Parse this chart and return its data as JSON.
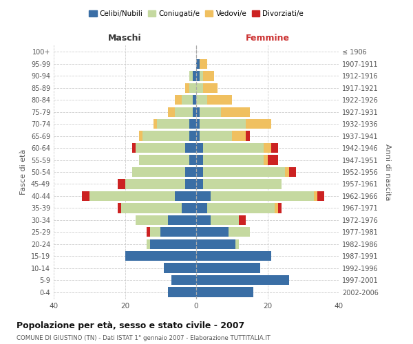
{
  "age_groups": [
    "0-4",
    "5-9",
    "10-14",
    "15-19",
    "20-24",
    "25-29",
    "30-34",
    "35-39",
    "40-44",
    "45-49",
    "50-54",
    "55-59",
    "60-64",
    "65-69",
    "70-74",
    "75-79",
    "80-84",
    "85-89",
    "90-94",
    "95-99",
    "100+"
  ],
  "birth_years": [
    "2002-2006",
    "1997-2001",
    "1992-1996",
    "1987-1991",
    "1982-1986",
    "1977-1981",
    "1972-1976",
    "1967-1971",
    "1962-1966",
    "1957-1961",
    "1952-1956",
    "1947-1951",
    "1942-1946",
    "1937-1941",
    "1932-1936",
    "1927-1931",
    "1922-1926",
    "1917-1921",
    "1912-1916",
    "1907-1911",
    "≤ 1906"
  ],
  "male_celibi": [
    8,
    7,
    9,
    20,
    13,
    10,
    8,
    4,
    6,
    3,
    3,
    2,
    3,
    2,
    2,
    1,
    1,
    0,
    1,
    0,
    0
  ],
  "male_coniugati": [
    0,
    0,
    0,
    0,
    1,
    3,
    9,
    17,
    24,
    17,
    15,
    14,
    14,
    13,
    9,
    5,
    3,
    2,
    1,
    0,
    0
  ],
  "male_vedovi": [
    0,
    0,
    0,
    0,
    0,
    0,
    0,
    0,
    0,
    0,
    0,
    0,
    0,
    1,
    1,
    2,
    2,
    1,
    0,
    0,
    0
  ],
  "male_divorziati": [
    0,
    0,
    0,
    0,
    0,
    1,
    0,
    1,
    2,
    2,
    0,
    0,
    1,
    0,
    0,
    0,
    0,
    0,
    0,
    0,
    0
  ],
  "female_celibi": [
    16,
    26,
    18,
    21,
    11,
    9,
    4,
    3,
    4,
    2,
    2,
    2,
    2,
    1,
    1,
    1,
    0,
    0,
    1,
    1,
    0
  ],
  "female_coniugati": [
    0,
    0,
    0,
    0,
    1,
    6,
    8,
    19,
    29,
    22,
    23,
    17,
    17,
    9,
    13,
    6,
    3,
    2,
    1,
    0,
    0
  ],
  "female_vedovi": [
    0,
    0,
    0,
    0,
    0,
    0,
    0,
    1,
    1,
    0,
    1,
    1,
    2,
    4,
    7,
    8,
    7,
    4,
    3,
    2,
    0
  ],
  "female_divorziati": [
    0,
    0,
    0,
    0,
    0,
    0,
    2,
    1,
    2,
    0,
    2,
    3,
    2,
    1,
    0,
    0,
    0,
    0,
    0,
    0,
    0
  ],
  "color_celibi": "#3a6ea5",
  "color_coniugati": "#c5d9a0",
  "color_vedovi": "#f0c060",
  "color_divorziati": "#cc2222",
  "title": "Popolazione per età, sesso e stato civile - 2007",
  "subtitle": "COMUNE DI GIUSTINO (TN) - Dati ISTAT 1° gennaio 2007 - Elaborazione TUTTITALIA.IT",
  "xlabel_left": "Maschi",
  "xlabel_right": "Femmine",
  "ylabel_left": "Fasce di età",
  "ylabel_right": "Anni di nascita",
  "xlim": 40,
  "bg_color": "#ffffff",
  "grid_color": "#cccccc",
  "bar_height": 0.82
}
